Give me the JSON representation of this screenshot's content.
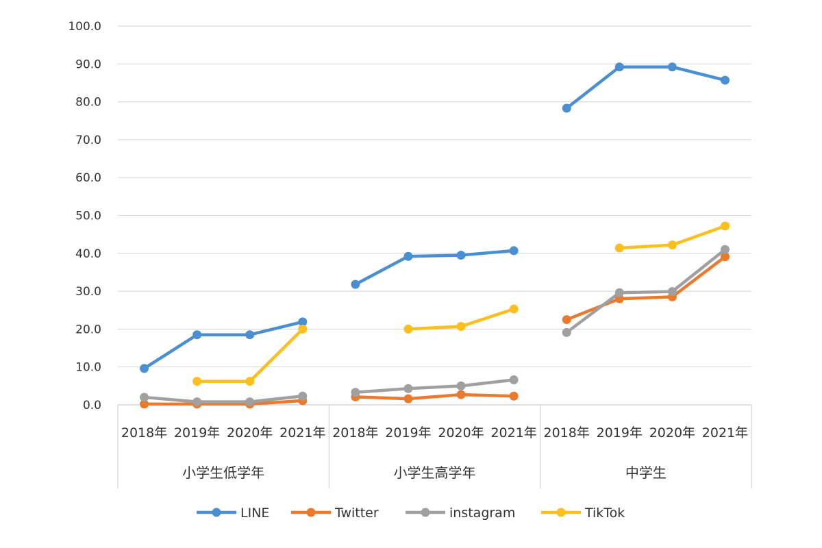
{
  "chart_data": {
    "type": "line",
    "title": "",
    "xlabel": "",
    "ylabel": "",
    "ylim": [
      0,
      100
    ],
    "yticks": [
      "0.0",
      "10.0",
      "20.0",
      "30.0",
      "40.0",
      "50.0",
      "60.0",
      "70.0",
      "80.0",
      "90.0",
      "100.0"
    ],
    "grid": true,
    "legend_position": "bottom",
    "groups": [
      {
        "name": "小学生低学年",
        "categories": [
          "2018年",
          "2019年",
          "2020年",
          "2021年"
        ]
      },
      {
        "name": "小学生高学年",
        "categories": [
          "2018年",
          "2019年",
          "2020年",
          "2021年"
        ]
      },
      {
        "name": "中学生",
        "categories": [
          "2018年",
          "2019年",
          "2020年",
          "2021年"
        ]
      }
    ],
    "series": [
      {
        "name": "LINE",
        "color": "#4a8fd1",
        "values": [
          [
            9.6,
            18.5,
            18.5,
            21.9
          ],
          [
            31.8,
            39.2,
            39.5,
            40.7
          ],
          [
            78.3,
            89.2,
            89.2,
            85.7
          ]
        ]
      },
      {
        "name": "Twitter",
        "color": "#ec7a2d",
        "values": [
          [
            0.2,
            0.2,
            0.2,
            1.1
          ],
          [
            2.1,
            1.6,
            2.7,
            2.3
          ],
          [
            22.5,
            28.0,
            28.5,
            39.1
          ]
        ]
      },
      {
        "name": "instagram",
        "color": "#a0a0a0",
        "values": [
          [
            2.0,
            0.8,
            0.8,
            2.3
          ],
          [
            3.3,
            4.3,
            5.0,
            6.6
          ],
          [
            19.1,
            29.6,
            29.9,
            41.0
          ]
        ]
      },
      {
        "name": "TikTok",
        "color": "#fcbf1e",
        "values": [
          [
            null,
            6.2,
            6.2,
            20.0
          ],
          [
            null,
            20.0,
            20.7,
            25.3
          ],
          [
            null,
            41.4,
            42.2,
            47.2
          ]
        ]
      }
    ]
  }
}
